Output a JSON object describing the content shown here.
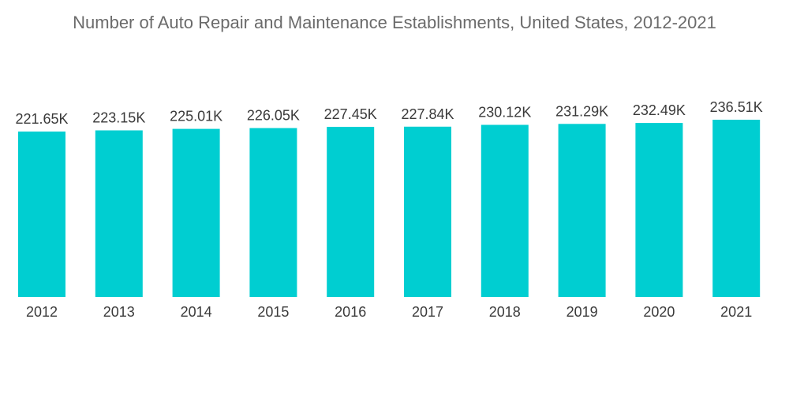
{
  "chart_data": {
    "type": "bar",
    "title": "Number of Auto Repair and Maintenance Establishments, United States, 2012-2021",
    "xlabel": "",
    "ylabel": "",
    "categories": [
      "2012",
      "2013",
      "2014",
      "2015",
      "2016",
      "2017",
      "2018",
      "2019",
      "2020",
      "2021"
    ],
    "values": [
      221.65,
      223.15,
      225.01,
      226.05,
      227.45,
      227.84,
      230.12,
      231.29,
      232.49,
      236.51
    ],
    "value_labels": [
      "221.65K",
      "223.15K",
      "225.01K",
      "226.05K",
      "227.45K",
      "227.84K",
      "230.12K",
      "231.29K",
      "232.49K",
      "236.51K"
    ],
    "bar_color": "#00ced1",
    "grid": false,
    "legend": "none"
  }
}
